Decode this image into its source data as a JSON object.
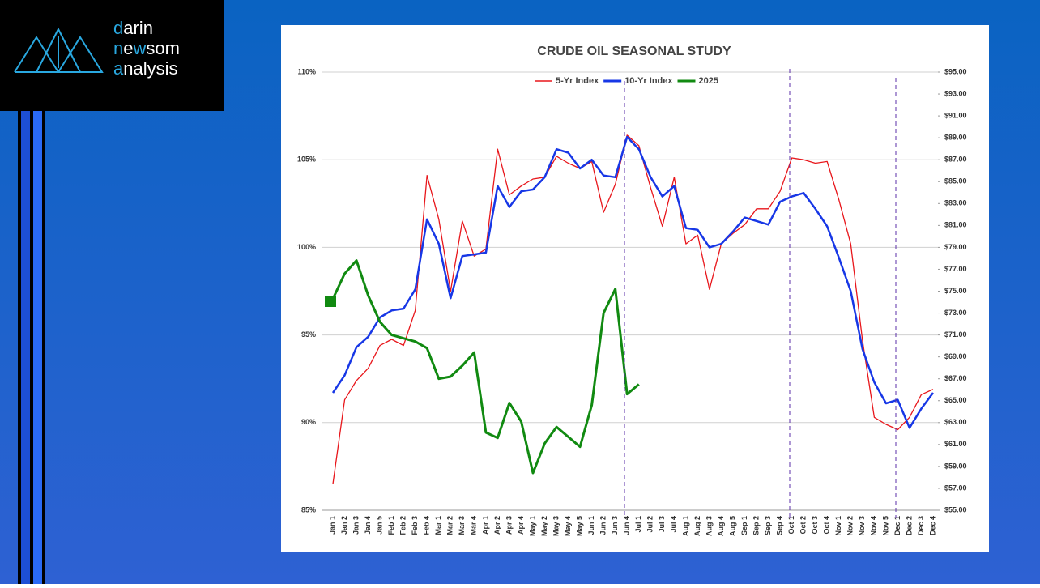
{
  "logo": {
    "lines": [
      [
        "d",
        "arin"
      ],
      [
        "n",
        "e",
        "w",
        "som"
      ],
      [
        "a",
        "nalysis"
      ]
    ]
  },
  "chart_data": {
    "type": "line",
    "title": "CRUDE OIL SEASONAL STUDY",
    "categories": [
      "Jan 1",
      "Jan 2",
      "Jan 3",
      "Jan 4",
      "Jan 5",
      "Feb 1",
      "Feb 2",
      "Feb 3",
      "Feb 4",
      "Mar 1",
      "Mar 2",
      "Mar 3",
      "Mar 4",
      "Apr 1",
      "Apr 2",
      "Apr 3",
      "Apr 4",
      "May 1",
      "May 2",
      "May 3",
      "May 4",
      "May 5",
      "Jun 1",
      "Jun 2",
      "Jun 3",
      "Jun 4",
      "Jul 1",
      "Jul 2",
      "Jul 3",
      "Jul 4",
      "Aug 1",
      "Aug 2",
      "Aug 3",
      "Aug 4",
      "Aug 5",
      "Sep 1",
      "Sep 2",
      "Sep 3",
      "Sep 4",
      "Oct 1",
      "Oct 2",
      "Oct 3",
      "Oct 4",
      "Nov 1",
      "Nov 2",
      "Nov 3",
      "Nov 4",
      "Nov 5",
      "Dec 1",
      "Dec 2",
      "Dec 3",
      "Dec 4"
    ],
    "series": [
      {
        "name": "5-Yr Index",
        "color": "#e8161b",
        "axis": "y",
        "values": [
          86.5,
          91.3,
          92.4,
          93.1,
          94.4,
          94.75,
          94.4,
          96.4,
          104.1,
          101.6,
          97.5,
          101.5,
          99.5,
          99.9,
          105.6,
          103.0,
          103.5,
          103.9,
          104.0,
          105.2,
          104.8,
          104.5,
          104.9,
          102.0,
          103.6,
          106.4,
          105.8,
          103.4,
          101.2,
          104.0,
          100.2,
          100.7,
          97.6,
          100.2,
          100.8,
          101.3,
          102.2,
          102.2,
          103.2,
          105.1,
          105.0,
          104.8,
          104.9,
          102.7,
          100.2,
          94.7,
          90.3,
          89.9,
          89.6,
          90.3,
          91.6,
          91.9
        ]
      },
      {
        "name": "10-Yr Index",
        "color": "#1737e6",
        "axis": "y",
        "values": [
          91.7,
          92.7,
          94.3,
          94.9,
          96.0,
          96.4,
          96.5,
          97.6,
          101.6,
          100.2,
          97.1,
          99.5,
          99.6,
          99.7,
          103.5,
          102.3,
          103.2,
          103.3,
          104.0,
          105.6,
          105.4,
          104.5,
          105.0,
          104.1,
          104.0,
          106.3,
          105.6,
          104.0,
          102.9,
          103.5,
          101.1,
          101.0,
          100.0,
          100.2,
          100.9,
          101.7,
          101.5,
          101.3,
          102.6,
          102.9,
          103.1,
          102.2,
          101.2,
          99.4,
          97.5,
          94.2,
          92.3,
          91.1,
          91.3,
          89.7,
          90.8,
          91.7
        ]
      },
      {
        "name": "2025",
        "color": "#118a11",
        "axis": "y2",
        "values": [
          74.3,
          76.6,
          77.8,
          74.6,
          72.2,
          71.0,
          70.7,
          70.4,
          69.8,
          67.0,
          67.2,
          68.2,
          69.4,
          62.1,
          61.6,
          64.8,
          63.1,
          58.4,
          61.1,
          62.6,
          61.7,
          60.8,
          64.6,
          73.0,
          75.2,
          65.6,
          66.5,
          null,
          null,
          null,
          null,
          null,
          null,
          null,
          null,
          null,
          null,
          null,
          null,
          null,
          null,
          null,
          null,
          null,
          null,
          null,
          null,
          null,
          null,
          null,
          null,
          null
        ]
      }
    ],
    "ylim": [
      85,
      110
    ],
    "yticks": [
      {
        "value": 85,
        "label": "85%"
      },
      {
        "value": 90,
        "label": "90%"
      },
      {
        "value": 95,
        "label": "95%"
      },
      {
        "value": 100,
        "label": "100%"
      },
      {
        "value": 105,
        "label": "105%"
      },
      {
        "value": 110,
        "label": "110%"
      }
    ],
    "y2lim": [
      55,
      95
    ],
    "y2ticks": [
      {
        "value": 55,
        "label": "$55.00"
      },
      {
        "value": 57,
        "label": "$57.00"
      },
      {
        "value": 59,
        "label": "$59.00"
      },
      {
        "value": 61,
        "label": "$61.00"
      },
      {
        "value": 63,
        "label": "$63.00"
      },
      {
        "value": 65,
        "label": "$65.00"
      },
      {
        "value": 67,
        "label": "$67.00"
      },
      {
        "value": 69,
        "label": "$69.00"
      },
      {
        "value": 71,
        "label": "$71.00"
      },
      {
        "value": 73,
        "label": "$73.00"
      },
      {
        "value": 75,
        "label": "$75.00"
      },
      {
        "value": 77,
        "label": "$77.00"
      },
      {
        "value": 79,
        "label": "$79.00"
      },
      {
        "value": 81,
        "label": "$81.00"
      },
      {
        "value": 83,
        "label": "$83.00"
      },
      {
        "value": 85,
        "label": "$85.00"
      },
      {
        "value": 87,
        "label": "$87.00"
      },
      {
        "value": 89,
        "label": "$89.00"
      },
      {
        "value": 91,
        "label": "$91.00"
      },
      {
        "value": 93,
        "label": "$93.00"
      },
      {
        "value": 95,
        "label": "$95.00"
      }
    ],
    "grid": true,
    "legend": "top"
  }
}
